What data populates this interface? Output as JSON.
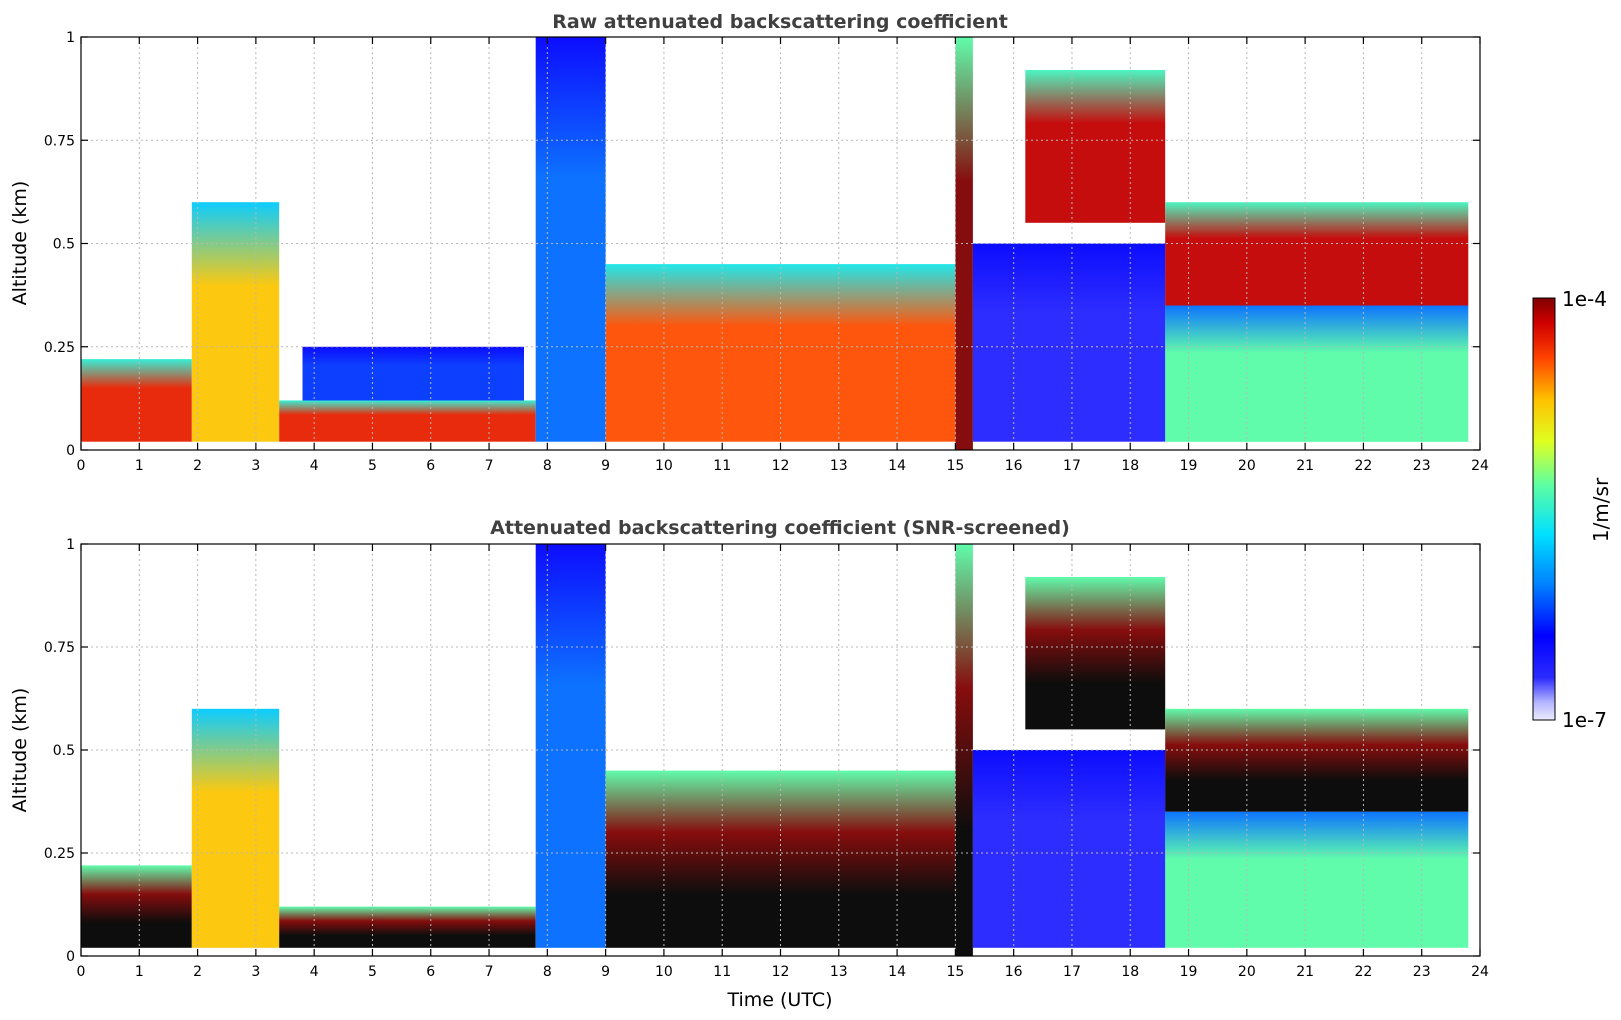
{
  "chart_data": [
    {
      "type": "heatmap",
      "title": "Raw attenuated backscattering coefficient",
      "xlabel": "",
      "ylabel": "Altitude (km)",
      "xlim": [
        0,
        24
      ],
      "ylim": [
        0,
        1
      ],
      "xticks": [
        "0",
        "1",
        "2",
        "3",
        "4",
        "5",
        "6",
        "7",
        "8",
        "9",
        "10",
        "11",
        "12",
        "13",
        "14",
        "15",
        "16",
        "17",
        "18",
        "19",
        "20",
        "21",
        "22",
        "23",
        "24"
      ],
      "yticks": [
        "0",
        "0.25",
        "0.5",
        "0.75",
        "1"
      ],
      "grid": true,
      "screened": false,
      "layers": [
        {
          "desc": "boundary layer",
          "x": [
            0,
            1.9
          ],
          "y_base": 0.02,
          "y_top": 0.22,
          "level": 0.9
        },
        {
          "desc": "plume",
          "x": [
            1.9,
            3.4
          ],
          "y_base": 0.02,
          "y_top": 0.6,
          "level": 0.75
        },
        {
          "desc": "decaying layer",
          "x": [
            3.4,
            7.8
          ],
          "y_base": 0.02,
          "y_top": 0.12,
          "level": 0.9
        },
        {
          "desc": "residual scatter",
          "x": [
            3.8,
            7.6
          ],
          "y_base": 0.12,
          "y_top": 0.25,
          "level": 0.25
        },
        {
          "desc": "clear column",
          "x": [
            7.8,
            9.0
          ],
          "y_base": 0.02,
          "y_top": 1.0,
          "level": 0.3
        },
        {
          "desc": "dense layer",
          "x": [
            9.0,
            15.0
          ],
          "y_base": 0.02,
          "y_top": 0.45,
          "level": 0.85
        },
        {
          "desc": "cloud",
          "x": [
            15.0,
            15.3
          ],
          "y_base": 0.0,
          "y_top": 1.0,
          "level": 1.0
        },
        {
          "desc": "attenuated column",
          "x": [
            15.3,
            18.6
          ],
          "y_base": 0.02,
          "y_top": 0.5,
          "level": 0.12
        },
        {
          "desc": "elevated layer",
          "x": [
            16.2,
            18.6
          ],
          "y_base": 0.55,
          "y_top": 0.92,
          "level": 0.95
        },
        {
          "desc": "evening layer",
          "x": [
            18.6,
            23.8
          ],
          "y_base": 0.35,
          "y_top": 0.6,
          "level": 0.95
        },
        {
          "desc": "lower layer",
          "x": [
            18.6,
            23.8
          ],
          "y_base": 0.02,
          "y_top": 0.35,
          "level": 0.55
        }
      ]
    },
    {
      "type": "heatmap",
      "title": "Attenuated backscattering coefficient (SNR-screened)",
      "xlabel": "Time (UTC)",
      "ylabel": "Altitude (km)",
      "xlim": [
        0,
        24
      ],
      "ylim": [
        0,
        1
      ],
      "xticks": [
        "0",
        "1",
        "2",
        "3",
        "4",
        "5",
        "6",
        "7",
        "8",
        "9",
        "10",
        "11",
        "12",
        "13",
        "14",
        "15",
        "16",
        "17",
        "18",
        "19",
        "20",
        "21",
        "22",
        "23",
        "24"
      ],
      "yticks": [
        "0",
        "0.25",
        "0.5",
        "0.75",
        "1"
      ],
      "grid": true,
      "screened": true,
      "layers": [
        {
          "desc": "boundary layer",
          "x": [
            0,
            1.9
          ],
          "y_base": 0.02,
          "y_top": 0.22,
          "level": 1.0
        },
        {
          "desc": "plume",
          "x": [
            1.9,
            3.4
          ],
          "y_base": 0.02,
          "y_top": 0.6,
          "level": 0.75
        },
        {
          "desc": "decaying layer",
          "x": [
            3.4,
            7.8
          ],
          "y_base": 0.02,
          "y_top": 0.12,
          "level": 1.0
        },
        {
          "desc": "clear column",
          "x": [
            7.8,
            9.0
          ],
          "y_base": 0.02,
          "y_top": 1.0,
          "level": 0.3
        },
        {
          "desc": "dense layer",
          "x": [
            9.0,
            15.0
          ],
          "y_base": 0.02,
          "y_top": 0.45,
          "level": 1.0
        },
        {
          "desc": "cloud",
          "x": [
            15.0,
            15.3
          ],
          "y_base": 0.0,
          "y_top": 1.0,
          "level": 1.0
        },
        {
          "desc": "attenuated column",
          "x": [
            15.3,
            18.6
          ],
          "y_base": 0.02,
          "y_top": 0.5,
          "level": 0.12
        },
        {
          "desc": "elevated layer",
          "x": [
            16.2,
            18.6
          ],
          "y_base": 0.55,
          "y_top": 0.92,
          "level": 1.0
        },
        {
          "desc": "evening layer",
          "x": [
            18.6,
            23.8
          ],
          "y_base": 0.35,
          "y_top": 0.6,
          "level": 1.0
        },
        {
          "desc": "lower layer",
          "x": [
            18.6,
            23.8
          ],
          "y_base": 0.02,
          "y_top": 0.35,
          "level": 0.55
        }
      ]
    }
  ],
  "colorbar": {
    "label": "1/m/sr",
    "max_label": "1e-4",
    "min_label": "1e-7",
    "range": [
      1e-07,
      0.0001
    ],
    "scale": "log",
    "colormap": "jet",
    "saturation_color": "#000000"
  }
}
